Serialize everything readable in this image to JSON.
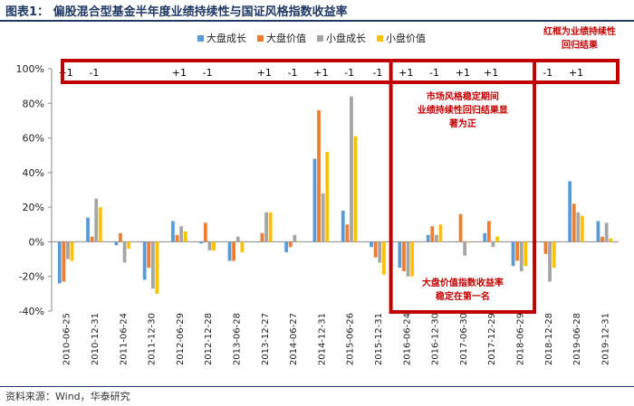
{
  "page": {
    "title": "图表1：  偏股混合型基金半年度业绩持续性与国证风格指数收益率",
    "source": "资料来源：Wind，华泰研究"
  },
  "chart_data": {
    "type": "bar",
    "title": "偏股混合型基金半年度业绩持续性与国证风格指数收益率",
    "xlabel": "",
    "ylabel": "",
    "ylim": [
      -40,
      100
    ],
    "yticks": [
      -40,
      -20,
      0,
      20,
      40,
      60,
      80,
      100
    ],
    "ytick_labels": [
      "-40%",
      "-20%",
      "0%",
      "20%",
      "40%",
      "60%",
      "80%",
      "100%"
    ],
    "grid": false,
    "legend_position": "top",
    "categories": [
      "2010-06-25",
      "2010-12-31",
      "2011-06-24",
      "2011-12-30",
      "2012-06-29",
      "2012-12-28",
      "2013-06-28",
      "2013-12-27",
      "2014-06-27",
      "2014-12-31",
      "2015-06-26",
      "2015-12-31",
      "2016-06-24",
      "2016-12-30",
      "2017-06-30",
      "2017-12-29",
      "2018-06-29",
      "2018-12-28",
      "2019-06-28",
      "2019-12-31"
    ],
    "series": [
      {
        "name": "大盘成长",
        "color": "#5b9bd5",
        "values": [
          -24,
          14,
          -2,
          -22,
          12,
          -1,
          -11,
          0,
          -6,
          48,
          18,
          -3,
          -15,
          4,
          0,
          5,
          -14,
          0,
          35,
          12
        ]
      },
      {
        "name": "大盘价值",
        "color": "#ed7d31",
        "values": [
          -23,
          3,
          5,
          -15,
          4,
          11,
          -11,
          5,
          -3,
          76,
          10,
          -9,
          -17,
          9,
          16,
          12,
          -11,
          -7,
          22,
          3
        ]
      },
      {
        "name": "小盘成长",
        "color": "#a5a5a5",
        "values": [
          -10,
          25,
          -12,
          -27,
          9,
          -5,
          3,
          17,
          4,
          28,
          84,
          -12,
          -20,
          4,
          -8,
          -3,
          -17,
          -23,
          17,
          11
        ]
      },
      {
        "name": "小盘价值",
        "color": "#ffc000",
        "values": [
          -11,
          20,
          -4,
          -30,
          6,
          -5,
          -6,
          17,
          0,
          52,
          61,
          -19,
          -20,
          10,
          0,
          3,
          -14,
          -15,
          15,
          2
        ]
      }
    ],
    "persistence": [
      "+1",
      "-1",
      "",
      "",
      "+1",
      "-1",
      "",
      "+1",
      "-1",
      "+1",
      "-1",
      "-1",
      "+1",
      "-1",
      "+1",
      "+1",
      "",
      "-1",
      "+1",
      ""
    ],
    "annotations": {
      "legend_note": [
        "红框为业绩持续性",
        "回归结果"
      ],
      "middle_top": [
        "市场风格稳定期间",
        "业绩持续性回归结果显",
        "著为正"
      ],
      "middle_bottom": [
        "大盘价值指数收益率",
        "稳定在第一名"
      ]
    },
    "highlight_color": "#c00000"
  }
}
